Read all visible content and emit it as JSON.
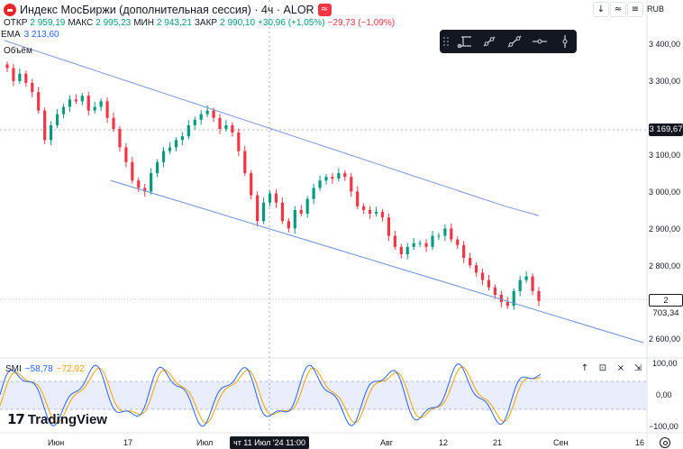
{
  "header": {
    "symbol_title": "Индекс МосБиржи (дополнительная сессия) · 4ч · ALOR",
    "status_badge": "≈",
    "ohlc": [
      {
        "key": "ОТКР",
        "value": "2 959,19"
      },
      {
        "key": "МАКС",
        "value": "2 995,23"
      },
      {
        "key": "МИН",
        "value": "2 943,21"
      },
      {
        "key": "ЗАКР",
        "value": "2 990,10"
      }
    ],
    "change": "+30,96 (+1,05%)",
    "last_change": "−29,73 (−1,09%)",
    "ema_label": "EMA",
    "ema_value": "3 213,60",
    "volume_label": "Объём"
  },
  "toolbar_right": {
    "buttons": [
      "↓",
      "≈",
      "≡"
    ],
    "currency": "RUB"
  },
  "drawing_toolbar": {
    "tools": [
      "horizontal-ray-tool",
      "trend-line-tool",
      "extended-line-tool",
      "horizontal-line-tool",
      "vertical-line-tool"
    ]
  },
  "price_axis": {
    "labels": [
      "3 400,00",
      "3 300,00",
      "3 100,00",
      "3 000,00",
      "2 900,00",
      "2 800,00",
      "2 600,00"
    ],
    "crosshair_price": "3 169,67",
    "last_price": "2 703,34"
  },
  "smi": {
    "name": "SMI",
    "k_value": "−58,78",
    "d_value": "−72,92",
    "axis_labels": [
      "100,00",
      "0,00",
      "−100,00"
    ],
    "pane_buttons": [
      "↑",
      "⊡",
      "×",
      "⇲"
    ]
  },
  "time_axis": {
    "labels": [
      "Июн",
      "17",
      "Июл",
      "Авг",
      "12",
      "21",
      "Сен",
      "16"
    ],
    "crosshair_time": "чт 11 Июл '24   11:00"
  },
  "branding": {
    "logo_mark": "17",
    "logo_text": "TradingView"
  },
  "colors": {
    "up": "#089981",
    "down": "#f23645",
    "ema": "#7b96d8",
    "channel": "#6b8fd6",
    "smi_k": "#2962ff",
    "smi_d": "#f7a300",
    "smi_band": "#e3e8fb"
  },
  "chart_data": {
    "type": "candlestick",
    "title": "Индекс МосБиржи (дополнительная сессия)",
    "interval": "4ч",
    "ylim": [
      2560,
      3450
    ],
    "price_series": [
      3335,
      3300,
      3320,
      3295,
      3270,
      3220,
      3140,
      3180,
      3210,
      3230,
      3250,
      3245,
      3260,
      3220,
      3230,
      3245,
      3200,
      3170,
      3120,
      3080,
      3030,
      3010,
      3000,
      3050,
      3080,
      3110,
      3120,
      3140,
      3150,
      3180,
      3195,
      3210,
      3220,
      3200,
      3170,
      3180,
      3160,
      3110,
      3050,
      2990,
      2920,
      2970,
      2995,
      2970,
      2920,
      2900,
      2950,
      2940,
      2980,
      3010,
      3030,
      3040,
      3035,
      3050,
      3040,
      3000,
      2960,
      2950,
      2940,
      2945,
      2930,
      2880,
      2850,
      2830,
      2850,
      2860,
      2860,
      2850,
      2880,
      2880,
      2900,
      2870,
      2855,
      2820,
      2800,
      2780,
      2760,
      2740,
      2720,
      2700,
      2690,
      2730,
      2760,
      2770,
      2730,
      2703
    ],
    "ema_series": [
      3410,
      3380,
      3350,
      3320,
      3290,
      3260,
      3230,
      3200,
      3170,
      3140,
      3110,
      3080,
      3050,
      3020,
      2990,
      2960,
      2935
    ],
    "channel_line": {
      "start": 3030,
      "end": 2590
    },
    "crosshair_price": 3169.67,
    "last_price": 2703.34
  }
}
